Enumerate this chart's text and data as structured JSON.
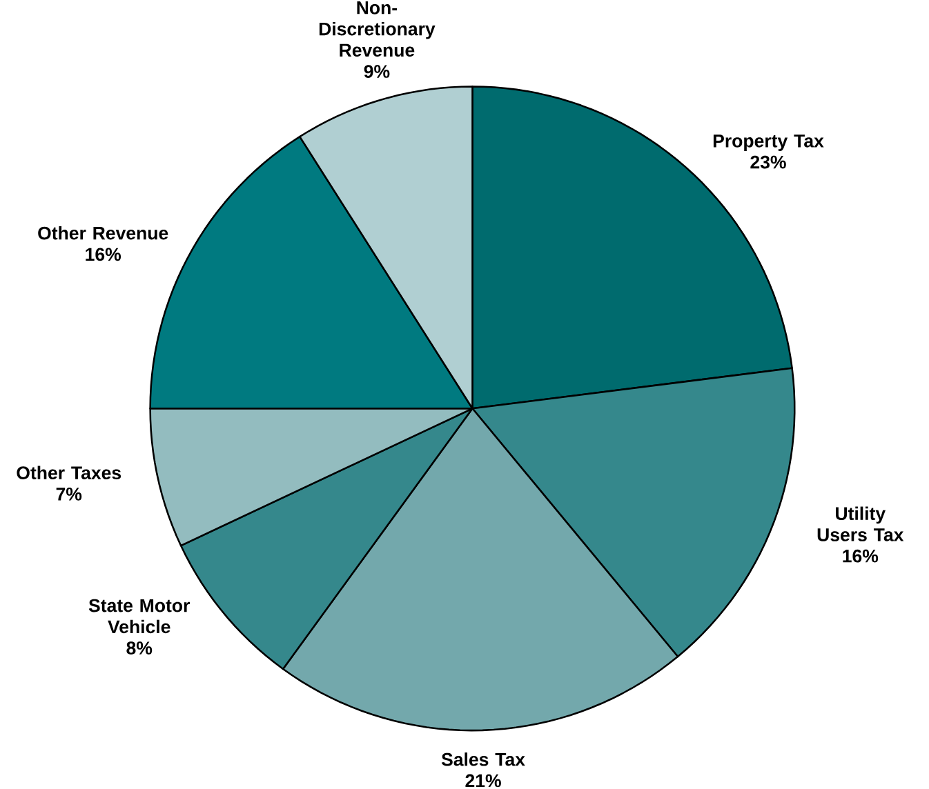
{
  "chart_data": {
    "type": "pie",
    "categories": [
      "Property Tax",
      "Utility Users Tax",
      "Sales Tax",
      "State Motor Vehicle",
      "Other Taxes",
      "Other Revenue",
      "Non-Discretionary Revenue"
    ],
    "values": [
      23,
      16,
      21,
      8,
      7,
      16,
      9
    ],
    "value_labels": [
      "23%",
      "16%",
      "21%",
      "8%",
      "7%",
      "16%",
      "9%"
    ],
    "colors": [
      "#006b6e",
      "#35888c",
      "#73a8ac",
      "#35888c",
      "#93bcbf",
      "#007a80",
      "#b0cfd2"
    ]
  }
}
